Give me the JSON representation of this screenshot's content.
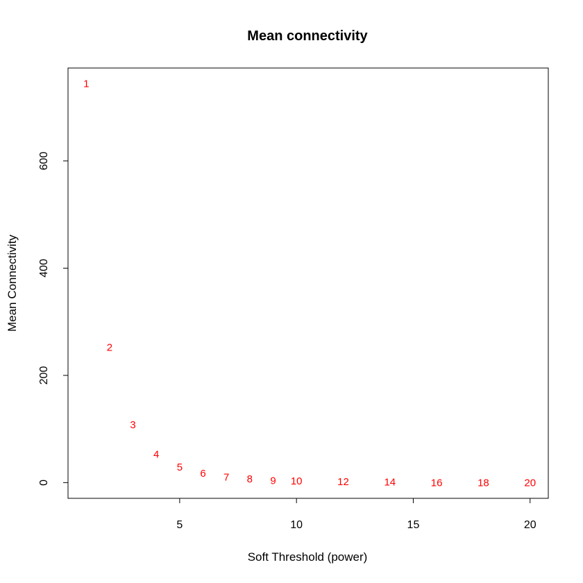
{
  "chart_data": {
    "type": "scatter",
    "marker": "text-labels",
    "title": "Mean connectivity",
    "xlabel": "Soft Threshold (power)",
    "ylabel": "Mean Connectivity",
    "xlim": [
      0.22,
      20.78
    ],
    "ylim": [
      -29.3,
      773.3
    ],
    "xticks": [
      5,
      10,
      15,
      20
    ],
    "yticks": [
      0,
      200,
      400,
      600
    ],
    "grid": false,
    "label_color": "#ff0000",
    "points": [
      {
        "x": 1,
        "y": 744,
        "label": "1"
      },
      {
        "x": 2,
        "y": 252,
        "label": "2"
      },
      {
        "x": 3,
        "y": 108,
        "label": "3"
      },
      {
        "x": 4,
        "y": 53,
        "label": "4"
      },
      {
        "x": 5,
        "y": 29,
        "label": "5"
      },
      {
        "x": 6,
        "y": 17,
        "label": "6"
      },
      {
        "x": 7,
        "y": 10,
        "label": "7"
      },
      {
        "x": 8,
        "y": 7,
        "label": "8"
      },
      {
        "x": 9,
        "y": 4,
        "label": "9"
      },
      {
        "x": 10,
        "y": 3,
        "label": "10"
      },
      {
        "x": 12,
        "y": 2,
        "label": "12"
      },
      {
        "x": 14,
        "y": 1,
        "label": "14"
      },
      {
        "x": 16,
        "y": 0,
        "label": "16"
      },
      {
        "x": 18,
        "y": 0,
        "label": "18"
      },
      {
        "x": 20,
        "y": 0,
        "label": "20"
      }
    ]
  }
}
